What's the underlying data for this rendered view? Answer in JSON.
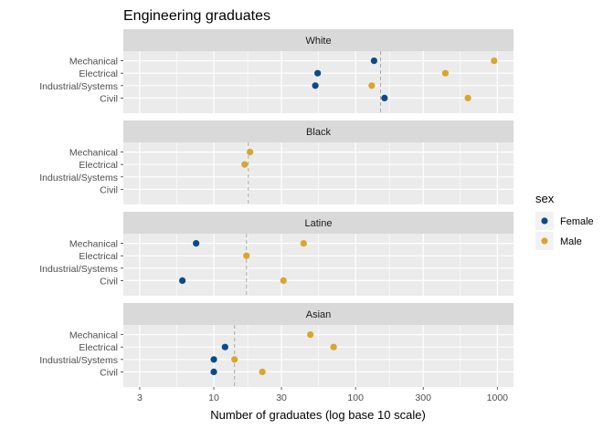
{
  "chart_data": {
    "type": "scatter",
    "title": "Engineering graduates",
    "xlabel": "Number of graduates (log base 10 scale)",
    "ylabel": "",
    "x_scale": "log10",
    "xlim": [
      2.3,
      1300
    ],
    "x_ticks": [
      3,
      10,
      30,
      100,
      300,
      1000
    ],
    "x_tick_labels": [
      "3",
      "10",
      "30",
      "100",
      "300",
      "1000"
    ],
    "grid": true,
    "categories": [
      "Mechanical",
      "Electrical",
      "Industrial/Systems",
      "Civil"
    ],
    "legend": {
      "title": "sex",
      "placement": "right",
      "entries": [
        {
          "label": "Female",
          "color": "#0B4A8A"
        },
        {
          "label": "Male",
          "color": "#D9A52B"
        }
      ]
    },
    "panels": [
      {
        "label": "White",
        "reference_line": 150,
        "points": [
          {
            "category": "Mechanical",
            "sex": "Female",
            "x": 135
          },
          {
            "category": "Mechanical",
            "sex": "Male",
            "x": 950
          },
          {
            "category": "Electrical",
            "sex": "Female",
            "x": 54
          },
          {
            "category": "Electrical",
            "sex": "Male",
            "x": 430
          },
          {
            "category": "Industrial/Systems",
            "sex": "Female",
            "x": 52
          },
          {
            "category": "Industrial/Systems",
            "sex": "Male",
            "x": 130
          },
          {
            "category": "Civil",
            "sex": "Female",
            "x": 160
          },
          {
            "category": "Civil",
            "sex": "Male",
            "x": 620
          }
        ]
      },
      {
        "label": "Black",
        "reference_line": 17.5,
        "points": [
          {
            "category": "Mechanical",
            "sex": "Male",
            "x": 18
          },
          {
            "category": "Electrical",
            "sex": "Male",
            "x": 16.5
          }
        ]
      },
      {
        "label": "Latine",
        "reference_line": 17,
        "points": [
          {
            "category": "Mechanical",
            "sex": "Female",
            "x": 7.5
          },
          {
            "category": "Mechanical",
            "sex": "Male",
            "x": 43
          },
          {
            "category": "Electrical",
            "sex": "Male",
            "x": 17
          },
          {
            "category": "Civil",
            "sex": "Female",
            "x": 6
          },
          {
            "category": "Civil",
            "sex": "Male",
            "x": 31
          }
        ]
      },
      {
        "label": "Asian",
        "reference_line": 14,
        "points": [
          {
            "category": "Mechanical",
            "sex": "Male",
            "x": 48
          },
          {
            "category": "Electrical",
            "sex": "Female",
            "x": 12
          },
          {
            "category": "Electrical",
            "sex": "Male",
            "x": 70
          },
          {
            "category": "Industrial/Systems",
            "sex": "Female",
            "x": 10
          },
          {
            "category": "Industrial/Systems",
            "sex": "Male",
            "x": 14
          },
          {
            "category": "Civil",
            "sex": "Female",
            "x": 10
          },
          {
            "category": "Civil",
            "sex": "Male",
            "x": 22
          }
        ]
      }
    ]
  }
}
